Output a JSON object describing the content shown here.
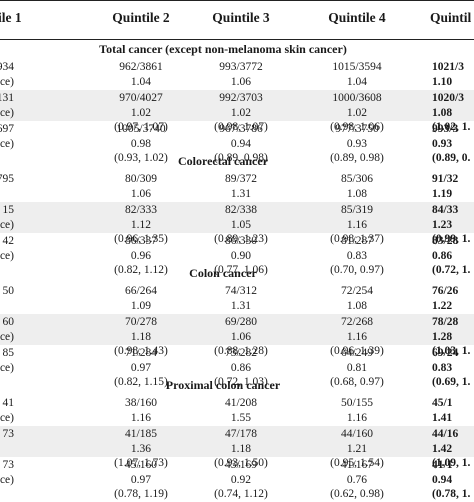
{
  "header": {
    "col1": "ile 1",
    "col2": "Quintile 2",
    "col3": "Quintile 3",
    "col4": "Quintile 4",
    "col5": "Quintil"
  },
  "rows": [
    {
      "type": "section",
      "title": "Total cancer (except non-melanoma skin cancer)"
    },
    {
      "type": "data",
      "shade": false,
      "c1": [
        "934",
        "ence)",
        ""
      ],
      "c2": [
        "962/3861",
        "1.04",
        "(1.00, 1.09)"
      ],
      "c3": [
        "993/3772",
        "1.06",
        "(1.01, 1.11)"
      ],
      "c4": [
        "1015/3594",
        "1.04",
        "(1.00, 1.09)"
      ],
      "c5": [
        "1021/3",
        "1.10",
        "(1.04, 1."
      ],
      "c5bold": true
    },
    {
      "type": "data",
      "shade": true,
      "c1": [
        "131",
        "ence)",
        ""
      ],
      "c2": [
        "970/4027",
        "1.02",
        "(0.97, 1.07)"
      ],
      "c3": [
        "992/3703",
        "1.02",
        "(0.98, 1.07)"
      ],
      "c4": [
        "1000/3608",
        "1.02",
        "(0.98, 1.06)"
      ],
      "c5": [
        "1020/3",
        "1.08",
        "(1.02, 1."
      ],
      "c5bold": true
    },
    {
      "type": "data",
      "shade": false,
      "c1": [
        "697",
        "ence)",
        ""
      ],
      "c2": [
        "1005/3740",
        "0.98",
        "(0.93, 1.02)"
      ],
      "c3": [
        "967/3786",
        "0.94",
        "(0.89, 0.98)"
      ],
      "c4": [
        "977/3750",
        "0.93",
        "(0.89, 0.98)"
      ],
      "c5": [
        "993/3",
        "0.93",
        "(0.89, 0."
      ],
      "c5bold": true
    },
    {
      "type": "section",
      "title": "Colorectal cancer"
    },
    {
      "type": "data",
      "shade": false,
      "c1": [
        "795",
        "",
        ""
      ],
      "c2": [
        "80/309",
        "1.06",
        "(0.90, 1.25)"
      ],
      "c3": [
        "89/372",
        "1.31",
        "(1.11, 1.54)"
      ],
      "c4": [
        "85/306",
        "1.08",
        "(0.91, 1.28)"
      ],
      "c5": [
        "91/32",
        "1.19",
        "(1.00, 1."
      ],
      "c5bold": true
    },
    {
      "type": "data",
      "shade": true,
      "c1": [
        "15",
        "ence)",
        ""
      ],
      "c2": [
        "82/333",
        "1.12",
        "(0.96, 1.35)"
      ],
      "c3": [
        "82/338",
        "1.05",
        "(0.89, 1.23)"
      ],
      "c4": [
        "85/319",
        "1.16",
        "(0.98, 1.37)"
      ],
      "c5": [
        "84/33",
        "1.23",
        "(0.99, 1."
      ],
      "c5bold": true
    },
    {
      "type": "data",
      "shade": false,
      "c1": [
        "42",
        "ence)",
        ""
      ],
      "c2": [
        "86/337",
        "0.96",
        "(0.82, 1.12)"
      ],
      "c3": [
        "86/330",
        "0.90",
        "(0.77, 1.06)"
      ],
      "c4": [
        "81/287",
        "0.83",
        "(0.70, 0.97)"
      ],
      "c5": [
        "83/28",
        "0.86",
        "(0.72, 1."
      ],
      "c5bold": true
    },
    {
      "type": "section",
      "title": "Colon cancer"
    },
    {
      "type": "data",
      "shade": false,
      "c1": [
        "50",
        "",
        ""
      ],
      "c2": [
        "66/264",
        "1.09",
        "(0.92, 1.30)"
      ],
      "c3": [
        "74/312",
        "1.31",
        "(1.11, 1.55)"
      ],
      "c4": [
        "72/254",
        "1.08",
        "(0.90, 1.32)"
      ],
      "c5": [
        "76/26",
        "1.22",
        "(1.00, 1."
      ],
      "c5bold": true
    },
    {
      "type": "data",
      "shade": true,
      "c1": [
        "60",
        "ence)",
        ""
      ],
      "c2": [
        "70/278",
        "1.18",
        "(0.98, 1.43)"
      ],
      "c3": [
        "69/280",
        "1.06",
        "(0.88, 1.28)"
      ],
      "c4": [
        "72/268",
        "1.16",
        "(0.96, 1.39)"
      ],
      "c5": [
        "78/28",
        "1.28",
        "(1.03, 1."
      ],
      "c5bold": true
    },
    {
      "type": "data",
      "shade": false,
      "c1": [
        "85",
        "ence)",
        ""
      ],
      "c2": [
        "71/284",
        "0.97",
        "(0.82, 1.15)"
      ],
      "c3": [
        "73/282",
        "0.86",
        "(0.72, 1.03)"
      ],
      "c4": [
        "64/249",
        "0.81",
        "(0.68, 0.97)"
      ],
      "c5": [
        "69/24",
        "0.83",
        "(0.69, 1."
      ],
      "c5bold": true
    },
    {
      "type": "section",
      "title": "Proximal colon cancer"
    },
    {
      "type": "data",
      "shade": false,
      "c1": [
        "41",
        "ence)",
        ""
      ],
      "c2": [
        "38/160",
        "1.16",
        "(0.92, 1.47)"
      ],
      "c3": [
        "41/208",
        "1.55",
        "(1.23, 1.95)"
      ],
      "c4": [
        "50/155",
        "1.16",
        "(0.92, 1.48)"
      ],
      "c5": [
        "45/1",
        "1.41",
        "(1.10, 1."
      ],
      "c5bold": true
    },
    {
      "type": "data",
      "shade": true,
      "c1": [
        "73",
        "",
        ""
      ],
      "c2": [
        "41/185",
        "1.36",
        "(1.07, 1.73)"
      ],
      "c3": [
        "47/178",
        "1.18",
        "(0.93, 1.50)"
      ],
      "c4": [
        "44/160",
        "1.21",
        "(0.95, 1.54)"
      ],
      "c5": [
        "44/16",
        "1.42",
        "(1.09, 1."
      ],
      "c5bold": true
    },
    {
      "type": "data",
      "shade": false,
      "c1": [
        "73",
        "ence)",
        ""
      ],
      "c2": [
        "45/160",
        "0.97",
        "(0.78, 1.19)"
      ],
      "c3": [
        "43/169",
        "0.92",
        "(0.74, 1.12)"
      ],
      "c4": [
        "41/167",
        "0.76",
        "(0.62, 0.98)"
      ],
      "c5": [
        "41/1",
        "0.94",
        "(0.78, 1."
      ],
      "c5bold": true
    }
  ]
}
